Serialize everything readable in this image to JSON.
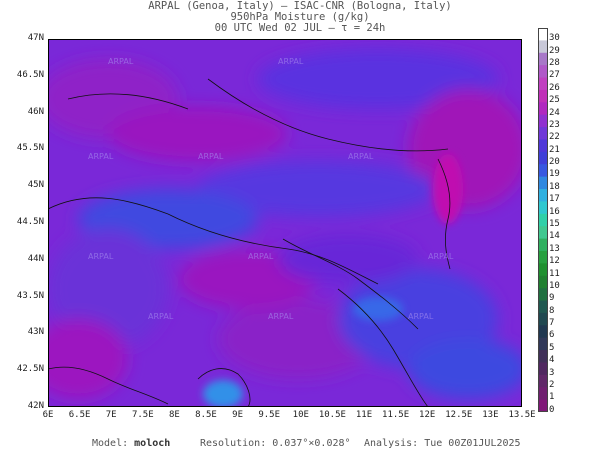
{
  "header": {
    "line1": "ARPAL (Genoa, Italy)  —  ISAC-CNR (Bologna, Italy)",
    "line2": "950hPa Moisture (g/kg)",
    "line3": "00 UTC Wed 02 JUL  —  τ = 24h"
  },
  "map": {
    "lat_labels": [
      "47N",
      "46.5N",
      "46N",
      "45.5N",
      "45N",
      "44.5N",
      "44N",
      "43.5N",
      "43N",
      "42.5N",
      "42N"
    ],
    "lon_labels": [
      "6E",
      "6.5E",
      "7E",
      "7.5E",
      "8E",
      "8.5E",
      "9E",
      "9.5E",
      "10E",
      "10.5E",
      "11E",
      "11.5E",
      "12E",
      "12.5E",
      "13E",
      "13.5E"
    ],
    "watermark": "ARPAL"
  },
  "colorbar": {
    "labels": [
      "30",
      "29",
      "28",
      "27",
      "26",
      "25",
      "24",
      "23",
      "22",
      "21",
      "20",
      "19",
      "18",
      "17",
      "16",
      "15",
      "14",
      "13",
      "12",
      "11",
      "10",
      "9",
      "8",
      "7",
      "6",
      "5",
      "4",
      "3",
      "2",
      "1",
      "0"
    ],
    "colors": [
      "#ffffff",
      "#c8c8d8",
      "#a878c8",
      "#b058c8",
      "#c040c0",
      "#c030b8",
      "#b028c0",
      "#9030d0",
      "#7038d8",
      "#5038d8",
      "#4040d8",
      "#3858e0",
      "#3088e0",
      "#30b0e0",
      "#30c8d0",
      "#30d0a8",
      "#40c890",
      "#30b060",
      "#28a040",
      "#209030",
      "#208030",
      "#207040",
      "#205850",
      "#204850",
      "#203850",
      "#303858",
      "#403058",
      "#502860",
      "#602868",
      "#702070",
      "#801878"
    ]
  },
  "footer": {
    "model_label": "Model:",
    "model_value": "moloch",
    "resolution_label": "Resolution:",
    "resolution_value": "0.037°×0.028°",
    "analysis_label": "Analysis:",
    "analysis_value": "Tue 00Z01JUL2025"
  }
}
